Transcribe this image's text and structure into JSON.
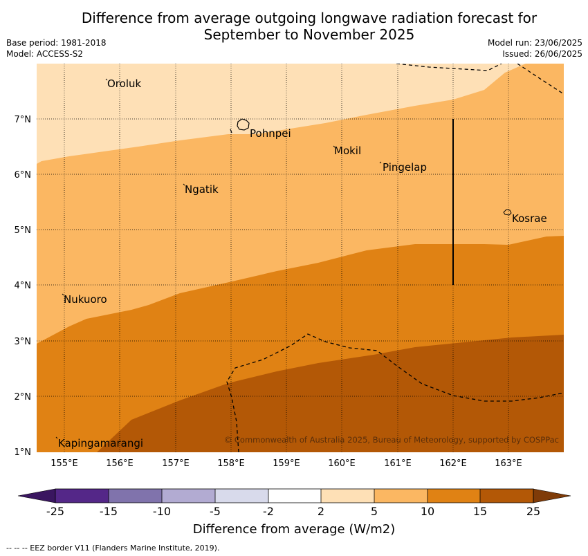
{
  "title_line1": "Difference from average outgoing longwave radiation forecast for",
  "title_line2": "September to November 2025",
  "base_period": "Base period: 1981-2018",
  "model": "Model: ACCESS-S2",
  "model_run": "Model run: 23/06/2025",
  "issued": "Issued: 26/06/2025",
  "x_ticks": [
    "155°E",
    "156°E",
    "157°E",
    "158°E",
    "159°E",
    "160°E",
    "161°E",
    "162°E",
    "163°E"
  ],
  "y_ticks": [
    "7°N",
    "6°N",
    "5°N",
    "4°N",
    "3°N",
    "2°N",
    "1°N"
  ],
  "places": [
    "Oroluk",
    "Pohnpei",
    "Mokil",
    "Pingelap",
    "Ngatik",
    "Kosrae",
    "Nukuoro",
    "Kapingamarangi"
  ],
  "credit": "© Commonwealth of Australia 2025, Bureau of Meteorology, supported by COSPPac",
  "colorbar": {
    "labels": [
      "-25",
      "-15",
      "-10",
      "-5",
      "-2",
      "2",
      "5",
      "10",
      "15",
      "25"
    ],
    "colors": [
      "#3a1660",
      "#542788",
      "#8073ac",
      "#b2abd2",
      "#d8daeb",
      "#ffffff",
      "#fee0b6",
      "#fbb762",
      "#e08214",
      "#b35806",
      "#7f3b08"
    ],
    "title": "Difference from average (W/m2)"
  },
  "footer": "--  --  -- EEZ border V11 (Flanders Marine Institute, 2019)."
}
